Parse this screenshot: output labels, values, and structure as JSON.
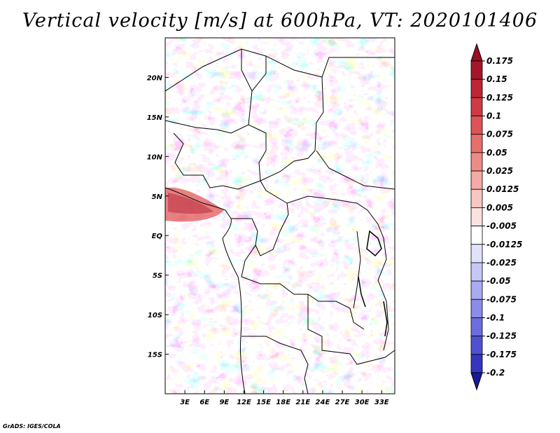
{
  "title": "Vertical velocity [m/s] at 600hPa, VT: 2020101406",
  "credit": "GrADS: IGES/COLA",
  "map": {
    "lon_range": [
      0,
      35
    ],
    "lat_range": [
      -20,
      25
    ],
    "lat_ticks": [
      {
        "lat": 20,
        "label": "20N"
      },
      {
        "lat": 15,
        "label": "15N"
      },
      {
        "lat": 10,
        "label": "10N"
      },
      {
        "lat": 5,
        "label": "5N"
      },
      {
        "lat": 0,
        "label": "EQ"
      },
      {
        "lat": -5,
        "label": "5S"
      },
      {
        "lat": -10,
        "label": "10S"
      },
      {
        "lat": -15,
        "label": "15S"
      }
    ],
    "lon_ticks": [
      {
        "lon": 3,
        "label": "3E"
      },
      {
        "lon": 6,
        "label": "6E"
      },
      {
        "lon": 9,
        "label": "9E"
      },
      {
        "lon": 12,
        "label": "12E"
      },
      {
        "lon": 15,
        "label": "15E"
      },
      {
        "lon": 18,
        "label": "18E"
      },
      {
        "lon": 21,
        "label": "21E"
      },
      {
        "lon": 24,
        "label": "24E"
      },
      {
        "lon": 27,
        "label": "27E"
      },
      {
        "lon": 30,
        "label": "30E"
      },
      {
        "lon": 33,
        "label": "33E"
      }
    ]
  },
  "colorbar": {
    "levels": [
      {
        "label": "0.175",
        "color": "#a5162a"
      },
      {
        "label": "0.15",
        "color": "#be2536"
      },
      {
        "label": "0.125",
        "color": "#d03a44"
      },
      {
        "label": "0.1",
        "color": "#de5256"
      },
      {
        "label": "0.075",
        "color": "#e66e6c"
      },
      {
        "label": "0.05",
        "color": "#ee8b87"
      },
      {
        "label": "0.025",
        "color": "#f4aaa6"
      },
      {
        "label": "0.0125",
        "color": "#f8c6c3"
      },
      {
        "label": "0.005",
        "color": "#fbe1df"
      },
      {
        "label": "-0.005",
        "color": "#ffffff"
      },
      {
        "label": "-0.0125",
        "color": "#e1e1fb"
      },
      {
        "label": "-0.025",
        "color": "#c6c6f7"
      },
      {
        "label": "-0.05",
        "color": "#aaaaf1"
      },
      {
        "label": "-0.075",
        "color": "#8b8bea"
      },
      {
        "label": "-0.1",
        "color": "#6d6de0"
      },
      {
        "label": "-0.125",
        "color": "#5050d2"
      },
      {
        "label": "-0.175",
        "color": "#3535c0"
      },
      {
        "label": "-0.2",
        "color": "#2020a8"
      }
    ],
    "top_color": "#9a0f22",
    "bottom_color": "#1a1a96"
  }
}
